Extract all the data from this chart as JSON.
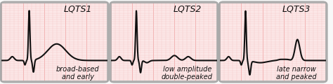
{
  "panels": [
    {
      "title": "LQTS1",
      "label": "broad-based\nand early",
      "bg_color": "#fce8e8",
      "grid_minor_color": "#f5c0c0",
      "grid_major_color": "#f0a0a0",
      "line_color": "#111111"
    },
    {
      "title": "LQTS2",
      "label": "low amplitude\ndouble-peaked",
      "bg_color": "#fce8e8",
      "grid_minor_color": "#f5c0c0",
      "grid_major_color": "#f0a0a0",
      "line_color": "#111111"
    },
    {
      "title": "LQTS3",
      "label": "late narrow\nand peaked",
      "bg_color": "#fce8e8",
      "grid_minor_color": "#f5c0c0",
      "grid_major_color": "#f0a0a0",
      "line_color": "#111111"
    }
  ],
  "outer_bg": "#f8f8f8",
  "box_edge_color": "#aaaaaa",
  "title_fontsize": 9,
  "label_fontsize": 7
}
